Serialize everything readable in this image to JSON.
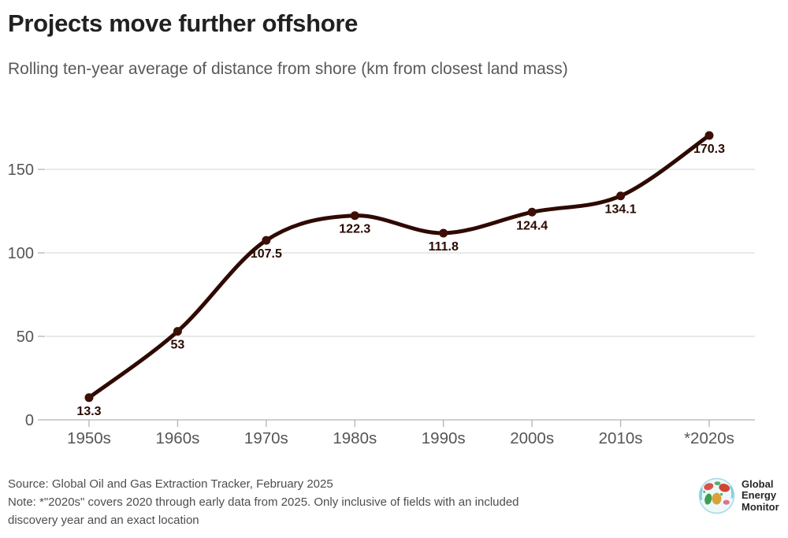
{
  "header": {
    "title": "Projects move further offshore",
    "subtitle": "Rolling ten-year average of distance from shore (km from closest land mass)"
  },
  "chart_data": {
    "type": "line",
    "categories": [
      "1950s",
      "1960s",
      "1970s",
      "1980s",
      "1990s",
      "2000s",
      "2010s",
      "*2020s"
    ],
    "values": [
      13.3,
      53,
      107.5,
      122.3,
      111.8,
      124.4,
      134.1,
      170.3
    ],
    "point_labels": [
      "13.3",
      "53",
      "107.5",
      "122.3",
      "111.8",
      "124.4",
      "134.1",
      "170.3"
    ],
    "title": "Projects move further offshore",
    "subtitle": "Rolling ten-year average of distance from shore (km from closest land mass)",
    "xlabel": "",
    "ylabel": "km from closest land mass",
    "ylim": [
      0,
      175
    ],
    "yticks": [
      0,
      50,
      100,
      150
    ],
    "grid": "horizontal",
    "legend": "none",
    "smooth": true
  },
  "colors": {
    "line": "#2e0a02",
    "dot": "#3d0f07",
    "point_label": "#2b0a03",
    "grid": "#dcdcdc",
    "axis": "#b3b3b3",
    "tick": "#b3b3b3",
    "axis_label": "#555555"
  },
  "footer": {
    "source": "Source: Global Oil and Gas Extraction Tracker, February 2025",
    "note_line1": "Note: *\"2020s\" covers 2020 through early data from 2025. Only inclusive of fields with an included",
    "note_line2": "discovery year and an exact location",
    "logo": {
      "lines": [
        "Global",
        "Energy",
        "Monitor"
      ]
    }
  }
}
